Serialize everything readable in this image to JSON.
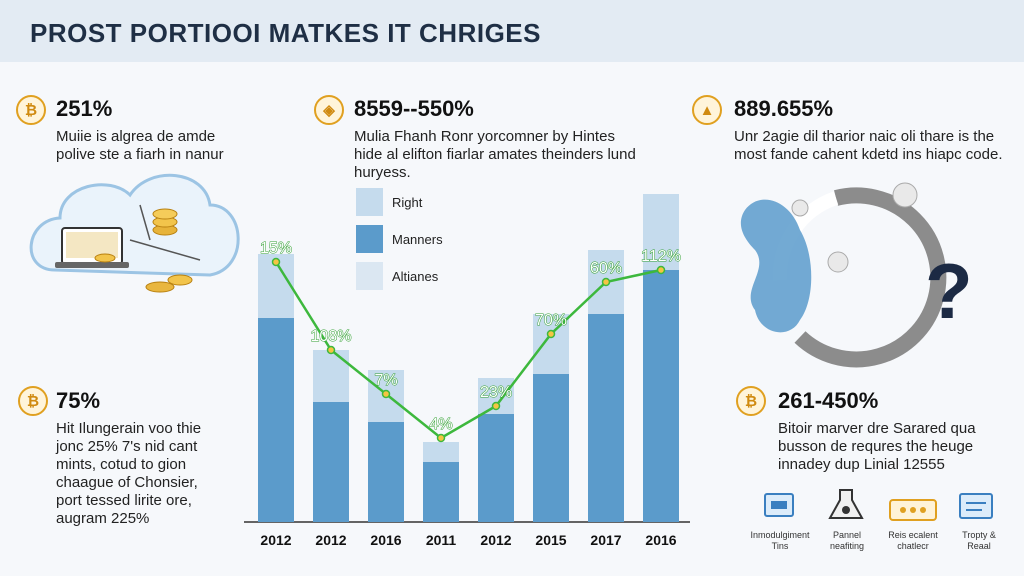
{
  "title": "PROST PORTIOOI MATKES IT CHRIGES",
  "panels": {
    "top_left": {
      "stat": "251%",
      "desc_lines": [
        "Muiie is algrea de amde",
        "polive ste a fiarh in nanur"
      ]
    },
    "top_mid": {
      "stat": "8559--550%",
      "desc_lines": [
        "Mulia Fhanh Ronr yorcomner by Hintes",
        "hide al elifton fiarlar amates theinders lund",
        "huryess."
      ]
    },
    "top_right": {
      "stat": "889.655%",
      "desc_lines": [
        "Unr 2agie dil tharior naic oli thare is the",
        "most fande cahent kdetd ins hiapc code."
      ]
    },
    "bottom_left": {
      "stat": "75%",
      "desc_lines": [
        "Hit Ilungerain voo thie",
        "jonc 25% 7's nid cant",
        "mints, cotud to gion",
        "chaague of Chonsier,",
        "port tessed lirite ore,",
        "augram 225%"
      ]
    },
    "bottom_right": {
      "stat": "261-450%",
      "desc_lines": [
        "Bitoir marver dre Sarared qua",
        "busson de requres the heuge",
        "innadey dup Linial 12555"
      ]
    }
  },
  "legend": [
    {
      "label": "Right",
      "color": "#c5dbed"
    },
    {
      "label": "Manners",
      "color": "#5b9bcb"
    },
    {
      "label": "Altianes",
      "color": "#dbe7f2"
    }
  ],
  "bottom_icons": [
    {
      "icon": "monitor-icon",
      "label_lines": [
        "Inmodulgiment",
        "Tins"
      ]
    },
    {
      "icon": "flask-icon",
      "label_lines": [
        "Pannel",
        "neafiting"
      ]
    },
    {
      "icon": "wallet-icon",
      "label_lines": [
        "Reis ecalent",
        "chatlecr"
      ]
    },
    {
      "icon": "screen-icon",
      "label_lines": [
        "Tropty &",
        "Reaal"
      ]
    }
  ],
  "colors": {
    "bar_dark": "#5b9bcb",
    "bar_light": "#c5dbed",
    "line": "#3db83d",
    "label": "#2e9e2e",
    "icon_gold": "#e0a020"
  },
  "chart_data": {
    "type": "bar",
    "categories": [
      "2012",
      "2012",
      "2016",
      "2011",
      "2012",
      "2015",
      "2017",
      "2016"
    ],
    "series": [
      {
        "values": [
          51,
          30,
          25,
          15,
          27,
          37,
          52,
          63
        ]
      },
      {
        "values": [
          16,
          13,
          13,
          5,
          9,
          15,
          16,
          19
        ]
      }
    ],
    "line_values": [
      65,
      43,
      32,
      21,
      29,
      47,
      60,
      63
    ],
    "data_labels": [
      "15%",
      "108%",
      "7%",
      "4%",
      "23%",
      "70%",
      "60%",
      "112%"
    ],
    "ylim": [
      0,
      80
    ]
  }
}
